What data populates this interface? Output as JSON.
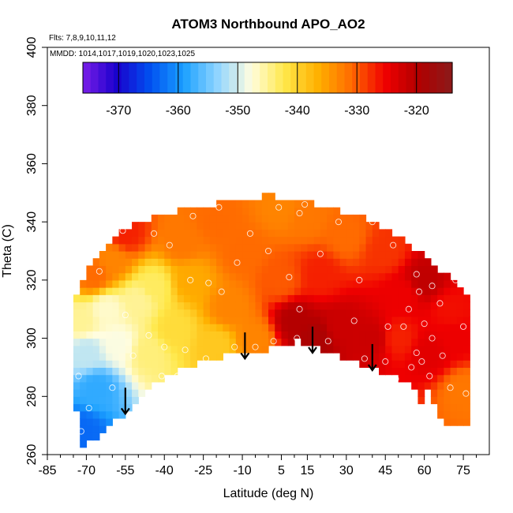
{
  "chart_data": {
    "type": "heatmap",
    "title": "ATOM3 Northbound APO_AO2",
    "flights_note": "Flts: 7,8,9,10,11,12",
    "dates_note": "MMDD: 1014,1017,1019,1020,1023,1025",
    "xlabel": "Latitude (deg N)",
    "ylabel": "Theta (C)",
    "xlim": [
      -85,
      85
    ],
    "ylim": [
      260,
      400
    ],
    "xticks": [
      -85,
      -70,
      -55,
      -40,
      -25,
      -10,
      5,
      15,
      30,
      45,
      60,
      75
    ],
    "xtick_labels": [
      "-85",
      "-70",
      "-55",
      "-40",
      "-25",
      "-10",
      "5",
      "15",
      "30",
      "45",
      "60",
      "75"
    ],
    "yticks": [
      260,
      280,
      300,
      320,
      340,
      360,
      380,
      400
    ],
    "ytick_labels": [
      "260",
      "280",
      "300",
      "320",
      "340",
      "360",
      "380",
      "400"
    ],
    "colorbar": {
      "range": [
        -376,
        -314
      ],
      "ticks": [
        -370,
        -360,
        -350,
        -340,
        -330,
        -320
      ],
      "tick_labels": [
        "-370",
        "-360",
        "-350",
        "-340",
        "-330",
        "-320"
      ],
      "colors": [
        "#7a1fe8",
        "#1a00cc",
        "#0050f0",
        "#1aa0ff",
        "#8fd4ff",
        "#fffde0",
        "#ffe84a",
        "#ffb000",
        "#ff6a00",
        "#f00000",
        "#b00000",
        "#8b1a1a"
      ]
    },
    "boundary_top": [
      [
        -75,
        312
      ],
      [
        -73,
        318
      ],
      [
        -70,
        322
      ],
      [
        -66,
        328
      ],
      [
        -62,
        333
      ],
      [
        -57,
        337
      ],
      [
        -52,
        339
      ],
      [
        -45,
        341
      ],
      [
        -38,
        343
      ],
      [
        -30,
        345
      ],
      [
        -22,
        346
      ],
      [
        -14,
        347
      ],
      [
        -8,
        348
      ],
      [
        0,
        349
      ],
      [
        8,
        348
      ],
      [
        15,
        347
      ],
      [
        22,
        345
      ],
      [
        30,
        343
      ],
      [
        38,
        341
      ],
      [
        45,
        338
      ],
      [
        52,
        334
      ],
      [
        58,
        330
      ],
      [
        63,
        326
      ],
      [
        68,
        322
      ],
      [
        73,
        318
      ],
      [
        78,
        312
      ]
    ],
    "boundary_bottom": [
      [
        78,
        270
      ],
      [
        68,
        270
      ],
      [
        61,
        283
      ],
      [
        57,
        273
      ],
      [
        56,
        286
      ],
      [
        50,
        286
      ],
      [
        44,
        288
      ],
      [
        38,
        290
      ],
      [
        30,
        293
      ],
      [
        22,
        296
      ],
      [
        12,
        299
      ],
      [
        5,
        297
      ],
      [
        -5,
        295
      ],
      [
        -15,
        294
      ],
      [
        -25,
        292
      ],
      [
        -35,
        289
      ],
      [
        -45,
        284
      ],
      [
        -52,
        277
      ],
      [
        -58,
        272
      ],
      [
        -64,
        268
      ],
      [
        -70,
        263
      ],
      [
        -72,
        262
      ],
      [
        -76,
        292
      ]
    ],
    "field_anchors": [
      {
        "lat": -72,
        "theta": 268,
        "value": -363
      },
      {
        "lat": -66,
        "theta": 283,
        "value": -358
      },
      {
        "lat": -70,
        "theta": 295,
        "value": -351
      },
      {
        "lat": -58,
        "theta": 298,
        "value": -348
      },
      {
        "lat": -62,
        "theta": 310,
        "value": -347
      },
      {
        "lat": -72,
        "theta": 306,
        "value": -345
      },
      {
        "lat": -46,
        "theta": 295,
        "value": -344
      },
      {
        "lat": -50,
        "theta": 313,
        "value": -345
      },
      {
        "lat": -44,
        "theta": 318,
        "value": -343
      },
      {
        "lat": -60,
        "theta": 327,
        "value": -333
      },
      {
        "lat": -67,
        "theta": 322,
        "value": -331
      },
      {
        "lat": -55,
        "theta": 336,
        "value": -327
      },
      {
        "lat": -36,
        "theta": 303,
        "value": -341
      },
      {
        "lat": -30,
        "theta": 320,
        "value": -336
      },
      {
        "lat": -33,
        "theta": 333,
        "value": -332
      },
      {
        "lat": -20,
        "theta": 298,
        "value": -339
      },
      {
        "lat": -15,
        "theta": 310,
        "value": -333
      },
      {
        "lat": -10,
        "theta": 330,
        "value": -331
      },
      {
        "lat": -5,
        "theta": 300,
        "value": -333
      },
      {
        "lat": 5,
        "theta": 345,
        "value": -333
      },
      {
        "lat": 5,
        "theta": 320,
        "value": -330
      },
      {
        "lat": 10,
        "theta": 306,
        "value": -320
      },
      {
        "lat": 18,
        "theta": 300,
        "value": -319
      },
      {
        "lat": 28,
        "theta": 304,
        "value": -322
      },
      {
        "lat": 20,
        "theta": 322,
        "value": -327
      },
      {
        "lat": 30,
        "theta": 335,
        "value": -331
      },
      {
        "lat": 40,
        "theta": 300,
        "value": -322
      },
      {
        "lat": 50,
        "theta": 300,
        "value": -327
      },
      {
        "lat": 52,
        "theta": 315,
        "value": -325
      },
      {
        "lat": 60,
        "theta": 320,
        "value": -321
      },
      {
        "lat": 62,
        "theta": 295,
        "value": -324
      },
      {
        "lat": 72,
        "theta": 300,
        "value": -325
      },
      {
        "lat": 75,
        "theta": 282,
        "value": -332
      },
      {
        "lat": 70,
        "theta": 310,
        "value": -326
      },
      {
        "lat": 45,
        "theta": 330,
        "value": -328
      },
      {
        "lat": -20,
        "theta": 340,
        "value": -331
      },
      {
        "lat": 15,
        "theta": 342,
        "value": -332
      }
    ],
    "observations": [
      {
        "lat": -72,
        "theta": 268
      },
      {
        "lat": -69,
        "theta": 276
      },
      {
        "lat": -60,
        "theta": 283
      },
      {
        "lat": -73,
        "theta": 287
      },
      {
        "lat": -41,
        "theta": 287
      },
      {
        "lat": -35,
        "theta": 287
      },
      {
        "lat": -52,
        "theta": 294
      },
      {
        "lat": -55,
        "theta": 308
      },
      {
        "lat": -46,
        "theta": 301
      },
      {
        "lat": -40,
        "theta": 297
      },
      {
        "lat": -32,
        "theta": 296
      },
      {
        "lat": -24,
        "theta": 293
      },
      {
        "lat": -13,
        "theta": 297
      },
      {
        "lat": -5,
        "theta": 297
      },
      {
        "lat": 2,
        "theta": 299
      },
      {
        "lat": 11,
        "theta": 300
      },
      {
        "lat": 23,
        "theta": 299
      },
      {
        "lat": 37,
        "theta": 293
      },
      {
        "lat": 45,
        "theta": 292
      },
      {
        "lat": 49,
        "theta": 286
      },
      {
        "lat": 55,
        "theta": 290
      },
      {
        "lat": 59,
        "theta": 292
      },
      {
        "lat": 62,
        "theta": 287
      },
      {
        "lat": 70,
        "theta": 283
      },
      {
        "lat": 76,
        "theta": 281
      },
      {
        "lat": -65,
        "theta": 323
      },
      {
        "lat": -56,
        "theta": 337
      },
      {
        "lat": -38,
        "theta": 332
      },
      {
        "lat": -30,
        "theta": 320
      },
      {
        "lat": -23,
        "theta": 319
      },
      {
        "lat": -18,
        "theta": 316
      },
      {
        "lat": -12,
        "theta": 326
      },
      {
        "lat": -7,
        "theta": 336
      },
      {
        "lat": 0,
        "theta": 330
      },
      {
        "lat": 4,
        "theta": 345
      },
      {
        "lat": 12,
        "theta": 343
      },
      {
        "lat": 14,
        "theta": 346
      },
      {
        "lat": 8,
        "theta": 321
      },
      {
        "lat": 12,
        "theta": 310
      },
      {
        "lat": 20,
        "theta": 329
      },
      {
        "lat": 27,
        "theta": 340
      },
      {
        "lat": 35,
        "theta": 320
      },
      {
        "lat": 33,
        "theta": 306
      },
      {
        "lat": 46,
        "theta": 304
      },
      {
        "lat": 52,
        "theta": 304
      },
      {
        "lat": 54,
        "theta": 310
      },
      {
        "lat": 57,
        "theta": 322
      },
      {
        "lat": 63,
        "theta": 318
      },
      {
        "lat": 60,
        "theta": 305
      },
      {
        "lat": 66,
        "theta": 312
      },
      {
        "lat": 72,
        "theta": 320
      },
      {
        "lat": 75,
        "theta": 304
      },
      {
        "lat": 48,
        "theta": 332
      },
      {
        "lat": 40,
        "theta": 340
      },
      {
        "lat": -44,
        "theta": 336
      },
      {
        "lat": 57,
        "theta": 295
      },
      {
        "lat": 63,
        "theta": 300
      },
      {
        "lat": 67,
        "theta": 294
      },
      {
        "lat": 58,
        "theta": 316
      },
      {
        "lat": -19,
        "theta": 345
      },
      {
        "lat": -29,
        "theta": 342
      }
    ],
    "arrows": [
      {
        "lat": -55,
        "theta_top": 283,
        "theta_tip": 274
      },
      {
        "lat": -9,
        "theta_top": 302,
        "theta_tip": 293
      },
      {
        "lat": 17,
        "theta_top": 304,
        "theta_tip": 295
      },
      {
        "lat": 40,
        "theta_top": 298,
        "theta_tip": 289
      }
    ]
  }
}
